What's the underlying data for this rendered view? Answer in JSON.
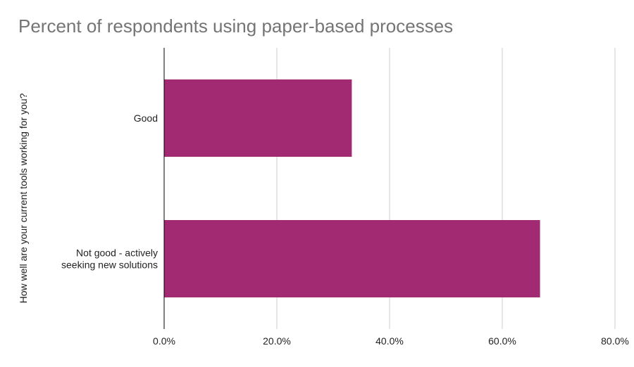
{
  "chart_data": {
    "type": "bar",
    "orientation": "horizontal",
    "title": "Percent of respondents using paper-based processes",
    "xlabel": "",
    "ylabel": "How well are your current tools working for you?",
    "categories": [
      [
        "Good"
      ],
      [
        "Not good - actively",
        "seeking new solutions"
      ]
    ],
    "values": [
      33.3,
      66.7
    ],
    "xlim": [
      0,
      80
    ],
    "xticks": [
      0,
      20,
      40,
      60,
      80
    ],
    "xtick_labels": [
      "0.0%",
      "20.0%",
      "40.0%",
      "60.0%",
      "80.0%"
    ],
    "grid": true,
    "legend": "none",
    "colors": {
      "bar": "#a12a73",
      "grid": "#cccccc",
      "axis": "#000000",
      "title": "#757575",
      "text": "#222222"
    }
  }
}
